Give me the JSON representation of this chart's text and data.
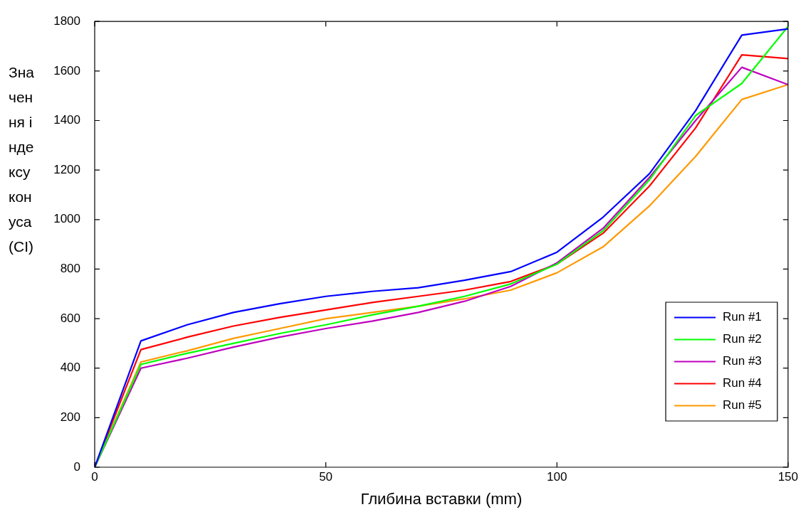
{
  "chart_data": {
    "type": "line",
    "xlabel": "Глибина вставки (mm)",
    "ylabel": "Значення індексу конуса (CI)",
    "x": [
      0,
      10,
      20,
      30,
      40,
      50,
      60,
      70,
      80,
      90,
      100,
      110,
      120,
      130,
      140,
      150
    ],
    "xlim": [
      0,
      150
    ],
    "xticks": [
      0,
      50,
      100,
      150
    ],
    "ylim": [
      0,
      1800
    ],
    "yticks": [
      0,
      200,
      400,
      600,
      800,
      1000,
      1200,
      1400,
      1600,
      1800
    ],
    "grid": false,
    "legend": "bottom right",
    "marker": "none",
    "line_style": "solid",
    "series": [
      {
        "name": "Run #1",
        "color": "#0000ff",
        "values": [
          0,
          510,
          575,
          625,
          660,
          690,
          710,
          725,
          755,
          790,
          868,
          1010,
          1185,
          1440,
          1745,
          1770
        ]
      },
      {
        "name": "Run #2",
        "color": "#00ff00",
        "values": [
          0,
          415,
          460,
          500,
          540,
          575,
          615,
          650,
          690,
          740,
          820,
          955,
          1160,
          1420,
          1550,
          1780
        ]
      },
      {
        "name": "Run #3",
        "color": "#bf00bf",
        "values": [
          0,
          400,
          440,
          485,
          525,
          560,
          590,
          625,
          670,
          730,
          825,
          965,
          1170,
          1400,
          1615,
          1545
        ]
      },
      {
        "name": "Run #4",
        "color": "#ff0000",
        "values": [
          0,
          475,
          525,
          570,
          605,
          635,
          665,
          690,
          715,
          750,
          820,
          945,
          1135,
          1370,
          1665,
          1650
        ]
      },
      {
        "name": "Run #5",
        "color": "#ff9900",
        "values": [
          0,
          425,
          470,
          520,
          560,
          600,
          625,
          650,
          680,
          715,
          785,
          890,
          1055,
          1255,
          1485,
          1545
        ]
      }
    ]
  }
}
